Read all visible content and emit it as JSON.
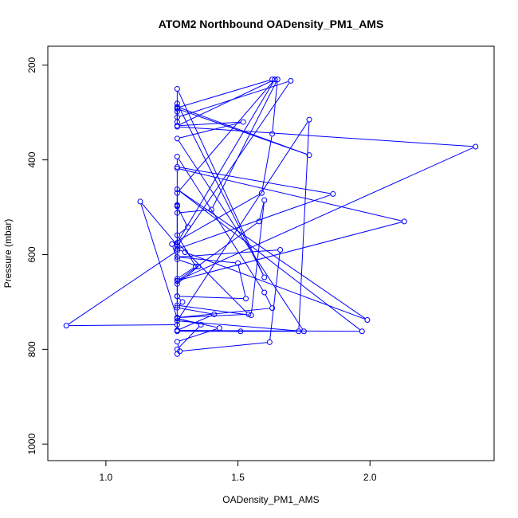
{
  "chart_data": {
    "type": "line",
    "title": "ATOM2 Northbound OADensity_PM1_AMS",
    "xlabel": "OADensity_PM1_AMS",
    "ylabel": "Pressure (mbar)",
    "xlim": [
      0.78,
      2.47
    ],
    "ylim": [
      1035,
      160
    ],
    "y_reversed": true,
    "x_ticks": [
      1.0,
      1.5,
      2.0
    ],
    "x_tick_labels": [
      "1.0",
      "1.5",
      "2.0"
    ],
    "y_ticks": [
      200,
      400,
      600,
      800,
      1000
    ],
    "y_tick_labels": [
      "200",
      "400",
      "600",
      "800",
      "1000"
    ],
    "grid": false,
    "legend": "none",
    "color": "#0000ff",
    "series": [
      {
        "x": [
          1.27,
          1.27,
          1.36,
          1.27,
          1.27,
          1.41,
          1.27,
          1.29,
          1.27,
          1.27,
          1.35,
          1.27,
          1.25,
          1.59,
          1.63,
          1.65,
          1.4,
          1.27,
          1.27,
          1.27,
          1.27,
          1.31,
          1.27,
          1.34,
          1.27,
          1.27,
          1.58,
          1.6,
          1.55,
          1.27,
          1.27,
          1.53,
          1.5,
          1.27,
          1.66,
          1.62,
          1.28,
          1.27,
          1.43,
          1.27,
          1.13,
          1.27,
          1.27,
          0.85,
          1.27,
          1.27,
          1.51,
          1.27,
          1.27,
          1.97,
          1.27,
          1.99,
          1.3,
          1.27,
          1.86,
          1.27,
          1.27,
          1.6,
          1.63,
          1.27,
          1.54,
          1.27,
          1.64,
          1.27,
          1.52,
          1.27,
          1.75,
          1.27,
          1.77,
          1.73,
          1.27,
          1.27,
          2.13,
          1.27,
          2.4,
          1.27,
          1.27,
          1.63,
          1.64,
          1.27,
          1.27,
          1.7,
          1.27,
          1.27,
          1.6,
          1.27,
          1.27,
          1.27,
          1.27,
          1.77,
          1.27
        ],
        "y": [
          810,
          800,
          748,
          735,
          760,
          726,
          712,
          700,
          688,
          662,
          625,
          610,
          578,
          470,
          345,
          230,
          505,
          512,
          497,
          495,
          498,
          542,
          559,
          625,
          651,
          656,
          530,
          485,
          728,
          707,
          688,
          693,
          618,
          605,
          590,
          785,
          804,
          784,
          755,
          735,
          488,
          580,
          592,
          750,
          748,
          760,
          762,
          760,
          760,
          762,
          462,
          738,
          595,
          588,
          472,
          415,
          393,
          680,
          713,
          733,
          726,
          575,
          230,
          328,
          320,
          355,
          762,
          740,
          315,
          762,
          762,
          418,
          530,
          655,
          372,
          330,
          290,
          230,
          230,
          470,
          583,
          233,
          310,
          281,
          648,
          250,
          298,
          320,
          292,
          390,
          288
        ]
      }
    ]
  }
}
